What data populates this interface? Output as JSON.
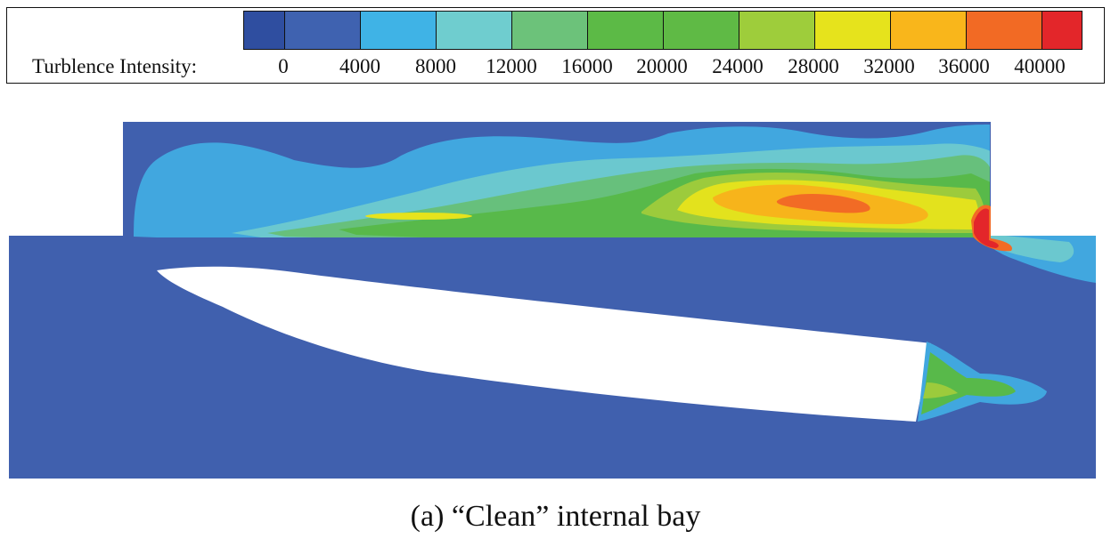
{
  "legend": {
    "title": "Turblence Intensity:",
    "ticks": [
      "0",
      "4000",
      "8000",
      "12000",
      "16000",
      "20000",
      "24000",
      "28000",
      "32000",
      "36000",
      "40000"
    ],
    "colors": [
      "#2f4ea0",
      "#3f62b0",
      "#3fb3e6",
      "#6fcdcf",
      "#6cc27a",
      "#5cba46",
      "#5fba45",
      "#9ecd3b",
      "#e6e31c",
      "#f9b61b",
      "#f26a24",
      "#e3262a"
    ]
  },
  "plot": {
    "background_color": "#4060ae",
    "body_color": "#ffffff"
  },
  "caption": "(a) “Clean” internal bay"
}
